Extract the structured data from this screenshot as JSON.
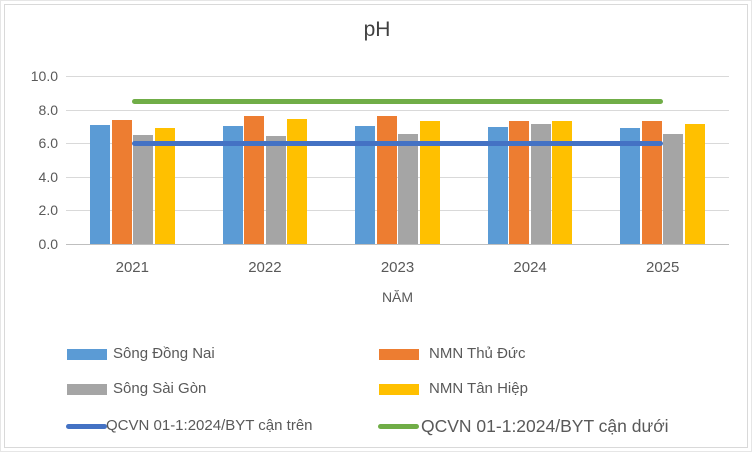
{
  "chart_data": {
    "type": "bar",
    "title": "pH",
    "xlabel": "NĂM",
    "categories": [
      "2021",
      "2022",
      "2023",
      "2024",
      "2025"
    ],
    "series": [
      {
        "name": "Sông Đồng Nai",
        "color": "#5B9BD5",
        "values": [
          7.1,
          7.0,
          7.05,
          6.95,
          6.9
        ]
      },
      {
        "name": "NMN Thủ Đức",
        "color": "#ED7D31",
        "values": [
          7.4,
          7.6,
          7.6,
          7.35,
          7.3
        ]
      },
      {
        "name": "Sông Sài Gòn",
        "color": "#A5A5A5",
        "values": [
          6.5,
          6.45,
          6.55,
          7.15,
          6.55
        ]
      },
      {
        "name": "NMN Tân Hiệp",
        "color": "#FFC000",
        "values": [
          6.9,
          7.45,
          7.35,
          7.3,
          7.15
        ]
      }
    ],
    "lines": [
      {
        "name": "QCVN 01-1:2024/BYT cận trên",
        "color": "#4472C4",
        "value": 6.0
      },
      {
        "name": "QCVN 01-1:2024/BYT cận dưới",
        "color": "#70AD47",
        "value": 8.5
      }
    ],
    "ylim": [
      0,
      10
    ],
    "ytick_step": 2,
    "ytick_labels": [
      "0.0",
      "2.0",
      "4.0",
      "6.0",
      "8.0",
      "10.0"
    ],
    "grid": true,
    "legend_position": "bottom"
  },
  "legend": {
    "items": [
      {
        "label": "Sông Đồng Nai",
        "color": "#5B9BD5",
        "swatch": "bar",
        "col": 0,
        "row": 0
      },
      {
        "label": "NMN Thủ Đức",
        "color": "#ED7D31",
        "swatch": "bar",
        "col": 1,
        "row": 0
      },
      {
        "label": "Sông Sài Gòn",
        "color": "#A5A5A5",
        "swatch": "bar",
        "col": 0,
        "row": 1
      },
      {
        "label": "NMN Tân Hiệp",
        "color": "#FFC000",
        "swatch": "bar",
        "col": 1,
        "row": 1
      },
      {
        "label": "QCVN 01-1:2024/BYT cận trên",
        "color": "#4472C4",
        "swatch": "line",
        "col": 0,
        "row": 2
      },
      {
        "label": "QCVN 01-1:2024/BYT cận dưới",
        "color": "#70AD47",
        "swatch": "line",
        "col": 1,
        "row": 2
      }
    ]
  },
  "colors": {
    "gridline": "#d9d9d9",
    "axis_line": "#bfbfbf",
    "tick_text": "#595959",
    "title_text": "#404040",
    "chart_border": "#d9d9d9"
  }
}
